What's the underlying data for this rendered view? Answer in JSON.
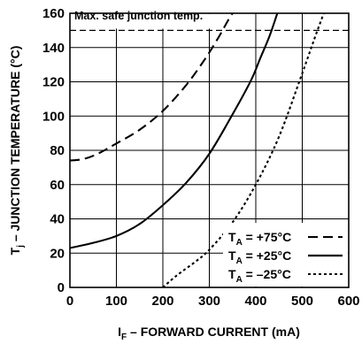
{
  "chart_data": {
    "type": "line",
    "xlabel_main": "I",
    "xlabel_sub": "F",
    "xlabel_rest": " – FORWARD CURRENT (mA)",
    "ylabel_main": "T",
    "ylabel_sub": "j",
    "ylabel_rest": " – JUNCTION TEMPERATURE (°C)",
    "xlim": [
      0,
      600
    ],
    "ylim": [
      0,
      160
    ],
    "xticks": [
      "0",
      "100",
      "200",
      "300",
      "400",
      "500",
      "600"
    ],
    "yticks": [
      "0",
      "20",
      "40",
      "60",
      "80",
      "100",
      "120",
      "140",
      "160"
    ],
    "grid": true,
    "annotation": {
      "text": "Max. safe junction temp.",
      "y": 150
    },
    "legend_position": "bottom-right",
    "series": [
      {
        "name_main": "T",
        "name_sub": "A",
        "name_rest": " = +75°C",
        "dash": "long-dash",
        "x": [
          0,
          30,
          60,
          100,
          150,
          200,
          250,
          290,
          320,
          350,
          380
        ],
        "y": [
          74,
          75,
          78,
          84,
          92,
          103,
          118,
          133,
          146,
          160,
          169
        ]
      },
      {
        "name_main": "T",
        "name_sub": "A",
        "name_rest": " = +25°C",
        "dash": "solid",
        "x": [
          0,
          50,
          100,
          150,
          200,
          250,
          300,
          350,
          390,
          410,
          430,
          450
        ],
        "y": [
          23,
          26,
          30,
          37,
          48,
          61,
          78,
          101,
          121,
          134,
          147,
          163
        ]
      },
      {
        "name_main": "T",
        "name_sub": "A",
        "name_rest": " = –25°C",
        "dash": "short-dash",
        "x": [
          200,
          230,
          270,
          300,
          350,
          400,
          450,
          500,
          530,
          560
        ],
        "y": [
          0,
          7,
          15,
          22,
          38,
          60,
          88,
          125,
          148,
          170
        ]
      }
    ]
  }
}
